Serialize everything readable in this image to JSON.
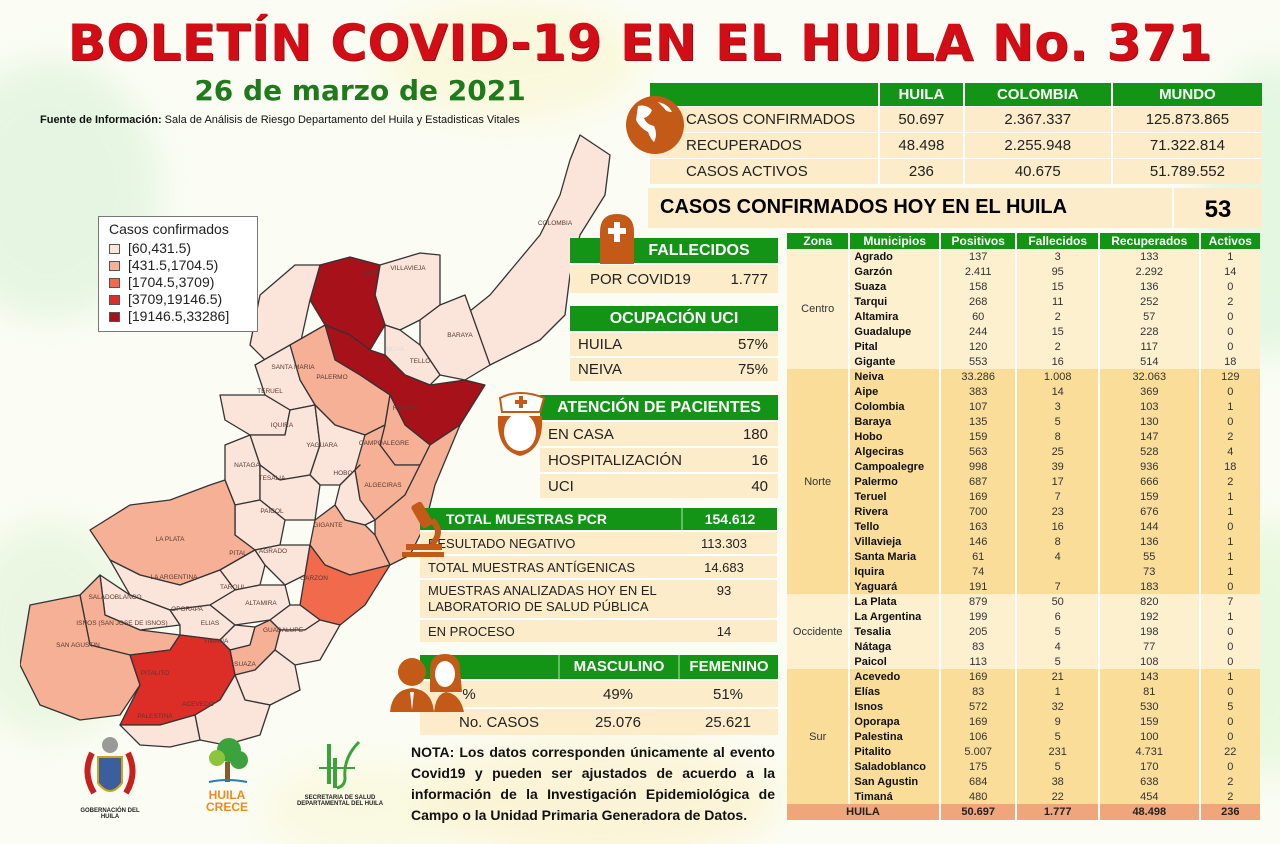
{
  "header": {
    "title": "BOLETÍN COVID-19 EN EL HUILA No. 371",
    "date": "26 de marzo de 2021",
    "source_label": "Fuente de Información:",
    "source_text": " Sala de Análisis de Riesgo Departamento del Huila y Estadisticas Vitales"
  },
  "colors": {
    "title_red": "#d20d16",
    "date_green": "#1e7a1b",
    "header_green": "#139416",
    "cream": "#fdecc9",
    "icon_orange": "#c45a17",
    "total_row": "#f0a57a"
  },
  "summary": {
    "columns": [
      "",
      "HUILA",
      "COLOMBIA",
      "MUNDO"
    ],
    "rows": [
      {
        "label": "CASOS CONFIRMADOS",
        "huila": "50.697",
        "colombia": "2.367.337",
        "mundo": "125.873.865"
      },
      {
        "label": "RECUPERADOS",
        "huila": "48.498",
        "colombia": "2.255.948",
        "mundo": "71.322.814"
      },
      {
        "label": "CASOS ACTIVOS",
        "huila": "236",
        "colombia": "40.675",
        "mundo": "51.789.552"
      }
    ],
    "today_label": "CASOS CONFIRMADOS  HOY EN EL HUILA",
    "today_value": "53",
    "icon": "globe-icon"
  },
  "fallecidos": {
    "title": "FALLECIDOS",
    "label": "POR COVID19",
    "value": "1.777",
    "icon": "tombstone-icon"
  },
  "uci": {
    "title": "OCUPACIÓN  UCI",
    "rows": [
      {
        "label": "HUILA",
        "value": "57%"
      },
      {
        "label": "NEIVA",
        "value": "75%"
      }
    ]
  },
  "atencion": {
    "title": "ATENCIÓN  DE PACIENTES",
    "icon": "nurse-icon",
    "rows": [
      {
        "label": "EN CASA",
        "value": "180"
      },
      {
        "label": "HOSPITALIZACIÓN",
        "value": "16"
      },
      {
        "label": "UCI",
        "value": "40"
      }
    ]
  },
  "muestras": {
    "title": "TOTAL MUESTRAS PCR",
    "title_value": "154.612",
    "icon": "microscope-icon",
    "rows": [
      {
        "label": "RESULTADO  NEGATIVO",
        "value": "113.303"
      },
      {
        "label": "TOTAL  MUESTRAS  ANTÍGENICAS",
        "value": "14.683"
      },
      {
        "label": "MUESTRAS  ANALIZADAS  HOY EN EL LABORATORIO DE SALUD  PÚBLICA",
        "value": "93"
      },
      {
        "label": "EN PROCESO",
        "value": "14"
      }
    ]
  },
  "genero": {
    "icon": "people-icon",
    "columns": [
      "MASCULINO",
      "FEMENINO"
    ],
    "rows": [
      {
        "label": "%",
        "masculino": "49%",
        "femenino": "51%"
      },
      {
        "label": "No. CASOS",
        "masculino": "25.076",
        "femenino": "25.621"
      }
    ]
  },
  "note": {
    "label": "NOTA:",
    "text": " Los datos corresponden únicamente al evento Covid19 y pueden ser ajustados de acuerdo a la información de la Investigación Epidemiológica de Campo o la Unidad Primaria Generadora de Datos."
  },
  "legend": {
    "title": "Casos confirmados",
    "items": [
      {
        "label": "[60,431.5)",
        "color": "#fbe4da"
      },
      {
        "label": "[431.5,1704.5)",
        "color": "#f5b095"
      },
      {
        "label": "[1704.5,3709)",
        "color": "#f26a4c"
      },
      {
        "label": "[3709,19146.5)",
        "color": "#dc2e26"
      },
      {
        "label": "[19146.5,33286]",
        "color": "#a6111a"
      }
    ]
  },
  "map": {
    "labels": [
      "COLOMBIA",
      "VILLAVIEJA",
      "AIPE",
      "BARAYA",
      "TELLO",
      "NEIVA",
      "SANTA MARIA",
      "PALERMO",
      "TERUEL",
      "RIVERA",
      "IQUIRA",
      "YAGUARA",
      "CAMPOALEGRE",
      "NATAGA",
      "HOBO",
      "TESALIA",
      "ALGECIRAS",
      "PAICOL",
      "GIGANTE",
      "LA PLATA",
      "PITAL",
      "AGRADO",
      "LA ARGENTINA",
      "TARQUI",
      "GARZON",
      "SALADOBLANCO",
      "OPORAPA",
      "ALTAMIRA",
      "ISNOS (SAN JOSE DE ISNOS)",
      "ELIAS",
      "GUADALUPE",
      "SAN AGUSTIN",
      "TIMANA",
      "SUAZA",
      "PITALITO",
      "ACEVEDO",
      "PALESTINA"
    ]
  },
  "municipios": {
    "columns": [
      "Zona",
      "Municipios",
      "Positivos",
      "Fallecidos",
      "Recuperados",
      "Activos"
    ],
    "zones": [
      {
        "zona": "Centro",
        "rows": [
          [
            "Agrado",
            "137",
            "3",
            "133",
            "1"
          ],
          [
            "Garzón",
            "2.411",
            "95",
            "2.292",
            "14"
          ],
          [
            "Suaza",
            "158",
            "15",
            "136",
            "0"
          ],
          [
            "Tarqui",
            "268",
            "11",
            "252",
            "2"
          ],
          [
            "Altamira",
            "60",
            "2",
            "57",
            "0"
          ],
          [
            "Guadalupe",
            "244",
            "15",
            "228",
            "0"
          ],
          [
            "Pital",
            "120",
            "2",
            "117",
            "0"
          ],
          [
            "Gigante",
            "553",
            "16",
            "514",
            "18"
          ]
        ]
      },
      {
        "zona": "Norte",
        "rows": [
          [
            "Neiva",
            "33.286",
            "1.008",
            "32.063",
            "129"
          ],
          [
            "Aipe",
            "383",
            "14",
            "369",
            "0"
          ],
          [
            "Colombia",
            "107",
            "3",
            "103",
            "1"
          ],
          [
            "Baraya",
            "135",
            "5",
            "130",
            "0"
          ],
          [
            "Hobo",
            "159",
            "8",
            "147",
            "2"
          ],
          [
            "Algeciras",
            "563",
            "25",
            "528",
            "4"
          ],
          [
            "Campoalegre",
            "998",
            "39",
            "936",
            "18"
          ],
          [
            "Palermo",
            "687",
            "17",
            "666",
            "2"
          ],
          [
            "Teruel",
            "169",
            "7",
            "159",
            "1"
          ],
          [
            "Rivera",
            "700",
            "23",
            "676",
            "1"
          ],
          [
            "Tello",
            "163",
            "16",
            "144",
            "0"
          ],
          [
            "Villavieja",
            "146",
            "8",
            "136",
            "1"
          ],
          [
            "Santa Maria",
            "61",
            "4",
            "55",
            "1"
          ],
          [
            "Iquira",
            "74",
            "",
            "73",
            "1"
          ],
          [
            "Yaguará",
            "191",
            "7",
            "183",
            "0"
          ]
        ]
      },
      {
        "zona": "Occidente",
        "rows": [
          [
            "La Plata",
            "879",
            "50",
            "820",
            "7"
          ],
          [
            "La Argentina",
            "199",
            "6",
            "192",
            "1"
          ],
          [
            "Tesalia",
            "205",
            "5",
            "198",
            "0"
          ],
          [
            "Nátaga",
            "83",
            "4",
            "77",
            "0"
          ],
          [
            "Paicol",
            "113",
            "5",
            "108",
            "0"
          ]
        ]
      },
      {
        "zona": "Sur",
        "rows": [
          [
            "Acevedo",
            "169",
            "21",
            "143",
            "1"
          ],
          [
            "Elías",
            "83",
            "1",
            "81",
            "0"
          ],
          [
            "Isnos",
            "572",
            "32",
            "530",
            "5"
          ],
          [
            "Oporapa",
            "169",
            "9",
            "159",
            "0"
          ],
          [
            "Palestina",
            "106",
            "5",
            "100",
            "0"
          ],
          [
            "Pitalito",
            "5.007",
            "231",
            "4.731",
            "22"
          ],
          [
            "Saladoblanco",
            "175",
            "5",
            "170",
            "0"
          ],
          [
            "San Agustin",
            "684",
            "38",
            "638",
            "2"
          ],
          [
            "Timaná",
            "480",
            "22",
            "454",
            "2"
          ]
        ]
      }
    ],
    "total": [
      "HUILA",
      "50.697",
      "1.777",
      "48.498",
      "236"
    ]
  },
  "logos": {
    "gobernacion": "GOBERNACIÓN DEL HUILA",
    "huila_crece_1": "HUILA",
    "huila_crece_2": "CRECE",
    "secretaria_1": "SECRETARIA DE SALUD",
    "secretaria_2": "DEPARTAMENTAL DEL HUILA"
  }
}
